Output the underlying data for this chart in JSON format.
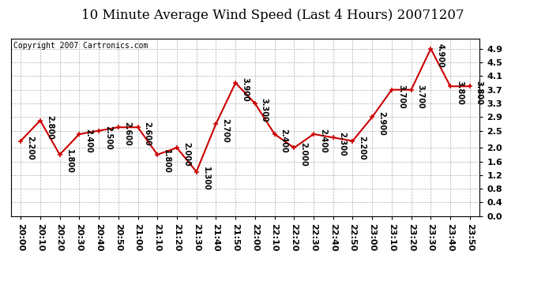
{
  "title": "10 Minute Average Wind Speed (Last 4 Hours) 20071207",
  "copyright_text": "Copyright 2007 Cartronics.com",
  "x_labels": [
    "20:00",
    "20:10",
    "20:20",
    "20:30",
    "20:40",
    "20:50",
    "21:00",
    "21:10",
    "21:20",
    "21:30",
    "21:40",
    "21:50",
    "22:00",
    "22:10",
    "22:20",
    "22:30",
    "22:40",
    "22:50",
    "23:00",
    "23:10",
    "23:20",
    "23:30",
    "23:40",
    "23:50"
  ],
  "y_values": [
    2.2,
    2.8,
    1.8,
    2.4,
    2.5,
    2.6,
    2.6,
    1.8,
    2.0,
    1.3,
    2.7,
    3.9,
    3.3,
    2.4,
    2.0,
    2.4,
    2.3,
    2.2,
    2.9,
    3.7,
    3.7,
    4.9,
    3.8,
    3.8
  ],
  "y_labels": [
    0.0,
    0.4,
    0.8,
    1.2,
    1.6,
    2.0,
    2.5,
    2.9,
    3.3,
    3.7,
    4.1,
    4.5,
    4.9
  ],
  "ylim": [
    0.0,
    5.2
  ],
  "line_color": "#cc0000",
  "marker_color": "#cc0000",
  "bg_color": "#ffffff",
  "plot_bg_color": "#ffffff",
  "grid_color": "#b0b0b0",
  "title_fontsize": 12,
  "annotation_fontsize": 7,
  "tick_fontsize": 8,
  "copyright_fontsize": 7
}
